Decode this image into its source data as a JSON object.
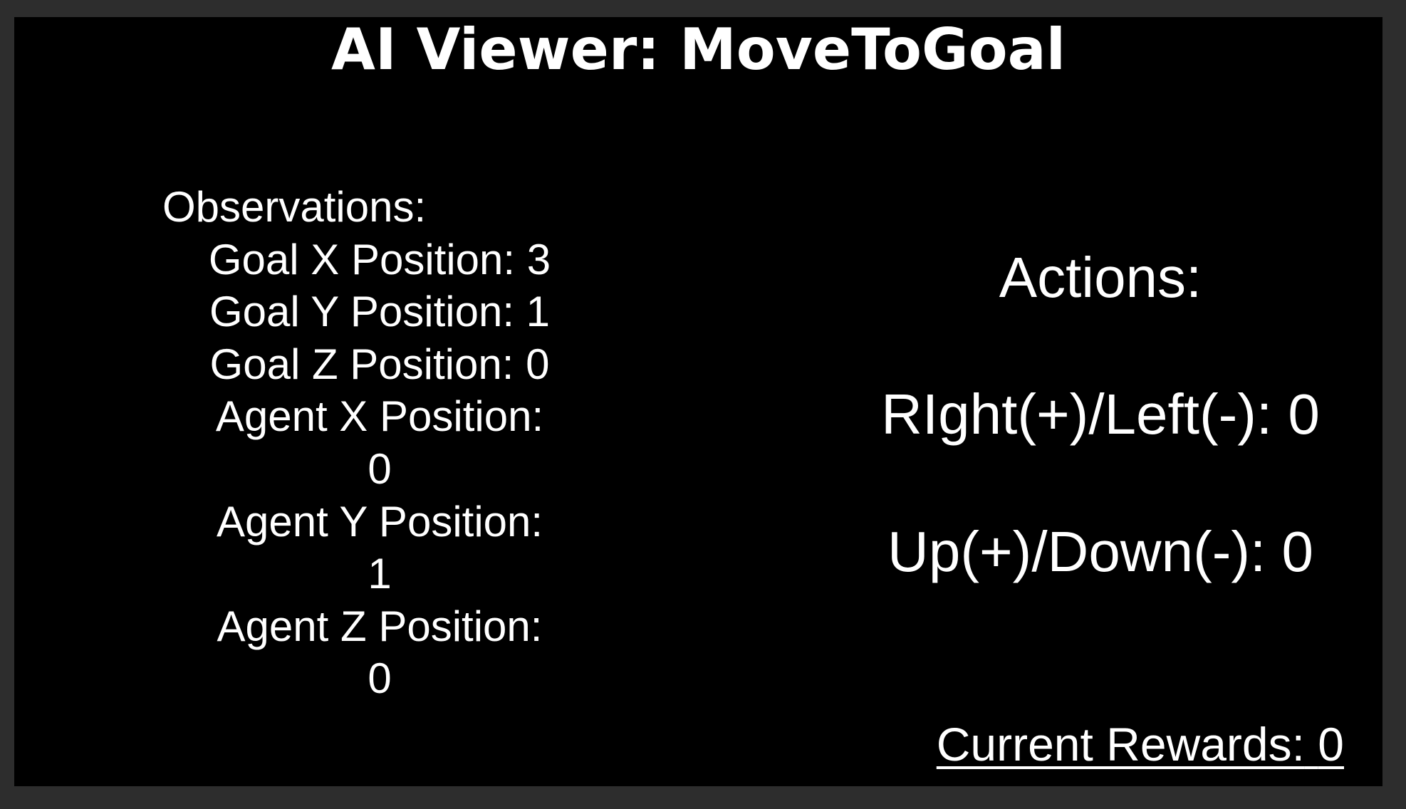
{
  "title": "AI Viewer: MoveToGoal",
  "observations": {
    "header": "Observations:",
    "items": [
      {
        "label": "Goal X Position:",
        "value": "3"
      },
      {
        "label": "Goal Y Position:",
        "value": "1"
      },
      {
        "label": "Goal Z Position:",
        "value": "0"
      },
      {
        "label": "Agent X Position:",
        "value": "0"
      },
      {
        "label": "Agent Y Position:",
        "value": "1"
      },
      {
        "label": "Agent Z Position:",
        "value": "0"
      }
    ]
  },
  "actions": {
    "title": "Actions:",
    "items": [
      {
        "label": "RIght(+)/Left(-):",
        "value": "0"
      },
      {
        "label": "Up(+)/Down(-):",
        "value": "0"
      }
    ]
  },
  "rewards": {
    "label": "Current Rewards:",
    "value": "0"
  },
  "colors": {
    "frame": "#2d2d2d",
    "background": "#000000",
    "text": "#ffffff"
  }
}
